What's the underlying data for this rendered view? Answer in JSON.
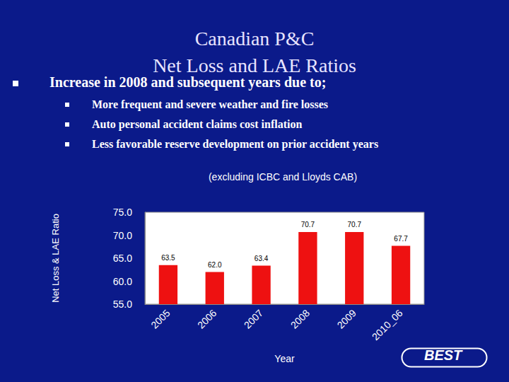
{
  "chart_data": {
    "type": "bar",
    "title": "Canadian P&C\nNet Loss and LAE Ratios",
    "subtitle": "(excluding ICBC and Lloyds CAB)",
    "annotations": {
      "heading": "Increase in 2008 and subsequent years due to;",
      "bullets": [
        "More frequent and severe weather and fire losses",
        "Auto personal accident claims cost inflation",
        "Less favorable reserve development on prior accident years"
      ],
      "logo": "BEST"
    },
    "x_label": "Year",
    "y_label": "Net Loss & LAE Ratio",
    "categories": [
      "2005",
      "2006",
      "2007",
      "2008",
      "2009",
      "2010_06"
    ],
    "values": [
      63.5,
      62.0,
      63.4,
      70.7,
      70.7,
      67.7
    ],
    "value_labels": [
      "63.5",
      "62.0",
      "63.4",
      "70.7",
      "70.7",
      "67.7"
    ],
    "color": "#ee1111",
    "ylim": [
      55,
      75
    ],
    "yticks": [
      {
        "value": 55,
        "label": "55.0"
      },
      {
        "value": 60,
        "label": "60.0"
      },
      {
        "value": 65,
        "label": "65.0"
      },
      {
        "value": 70,
        "label": "70.0"
      },
      {
        "value": 75,
        "label": "75.0"
      }
    ],
    "grid": false,
    "data_labels": true
  }
}
